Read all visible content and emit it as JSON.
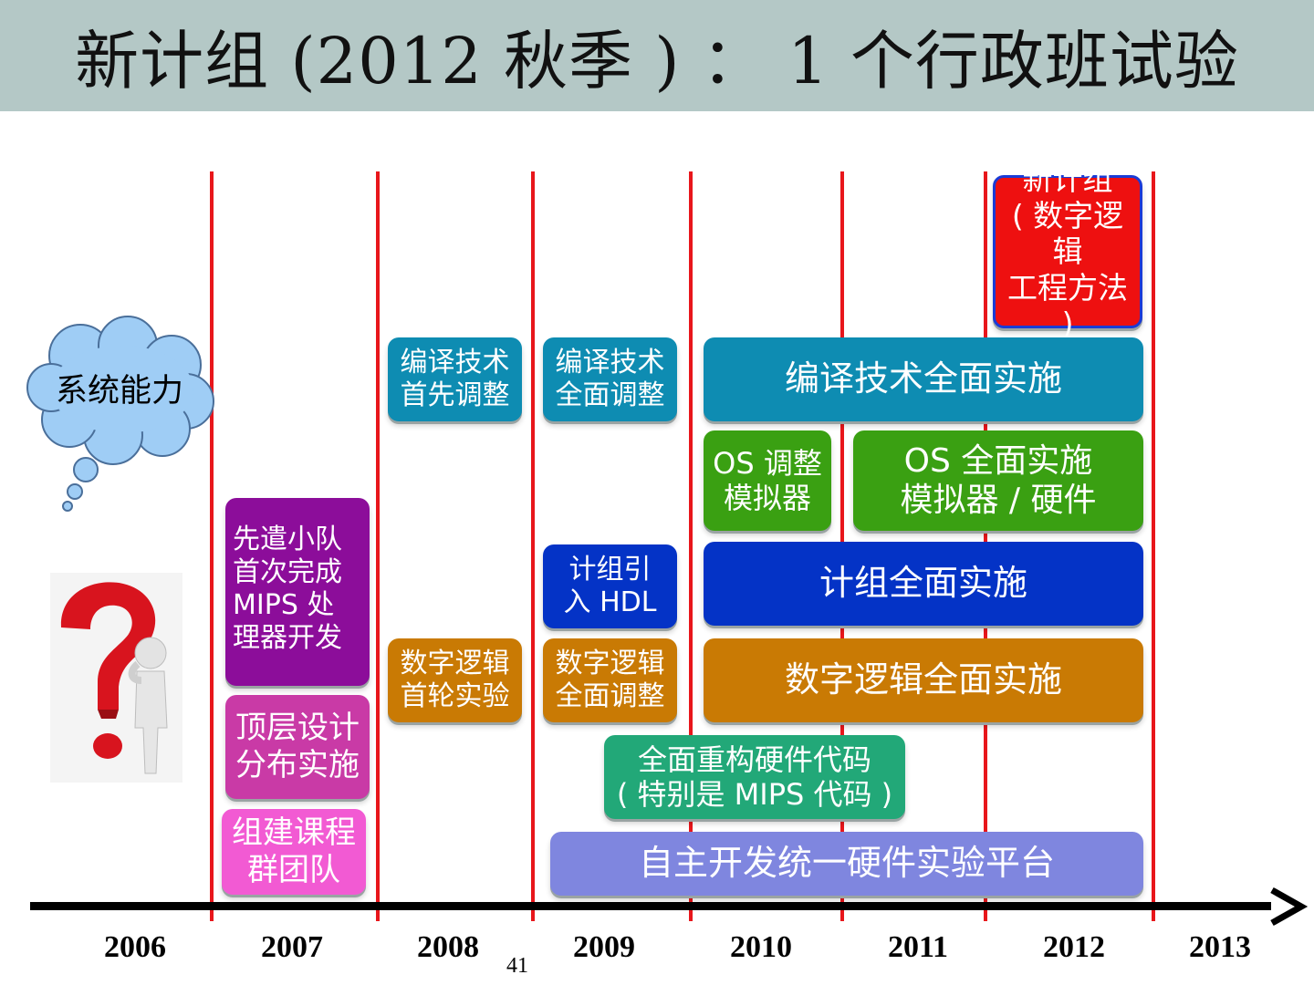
{
  "title": "新计组 (2012 秋季 ) ： 1 个行政班试验",
  "page_number": "41",
  "years": [
    "2006",
    "2007",
    "2008",
    "2009",
    "2010",
    "2011",
    "2012",
    "2013"
  ],
  "cloud_label": "系统能力",
  "boxes": {
    "new_curriculum": "新计组\n( 数字逻辑\n工程方法 )",
    "compiler_first": "编译技术\n首先调整",
    "compiler_full_adjust": "编译技术\n全面调整",
    "compiler_full_impl": "编译技术全面实施",
    "os_adjust": "OS 调整\n模拟器",
    "os_full_impl": "OS 全面实施\n模拟器 / 硬件",
    "vanguard": "先遣小队\n首次完成\nMIPS 处\n理器开发",
    "hdl": "计组引\n入 HDL",
    "co_full_impl": "计组全面实施",
    "digital_first": "数字逻辑\n首轮实验",
    "digital_full_adjust": "数字逻辑\n全面调整",
    "digital_full_impl": "数字逻辑全面实施",
    "top_design": "顶层设计\n分布实施",
    "rebuild_hw": "全面重构硬件代码\n( 特别是 MIPS 代码 )",
    "team": "组建课程\n群团队",
    "platform": "自主开发统一硬件实验平台"
  },
  "colors": {
    "title_bar": "#b4c8c6",
    "timeline_lines": "#e8161b",
    "teal": "#0e8cb2",
    "green": "#3aa012",
    "blue": "#0433c6",
    "orange": "#c97a04",
    "purple": "#8c0d9a",
    "magenta": "#c93aa6",
    "pink": "#f25ad3",
    "sea_green": "#22a878",
    "lavender": "#7f86df",
    "red": "#ee1010"
  }
}
